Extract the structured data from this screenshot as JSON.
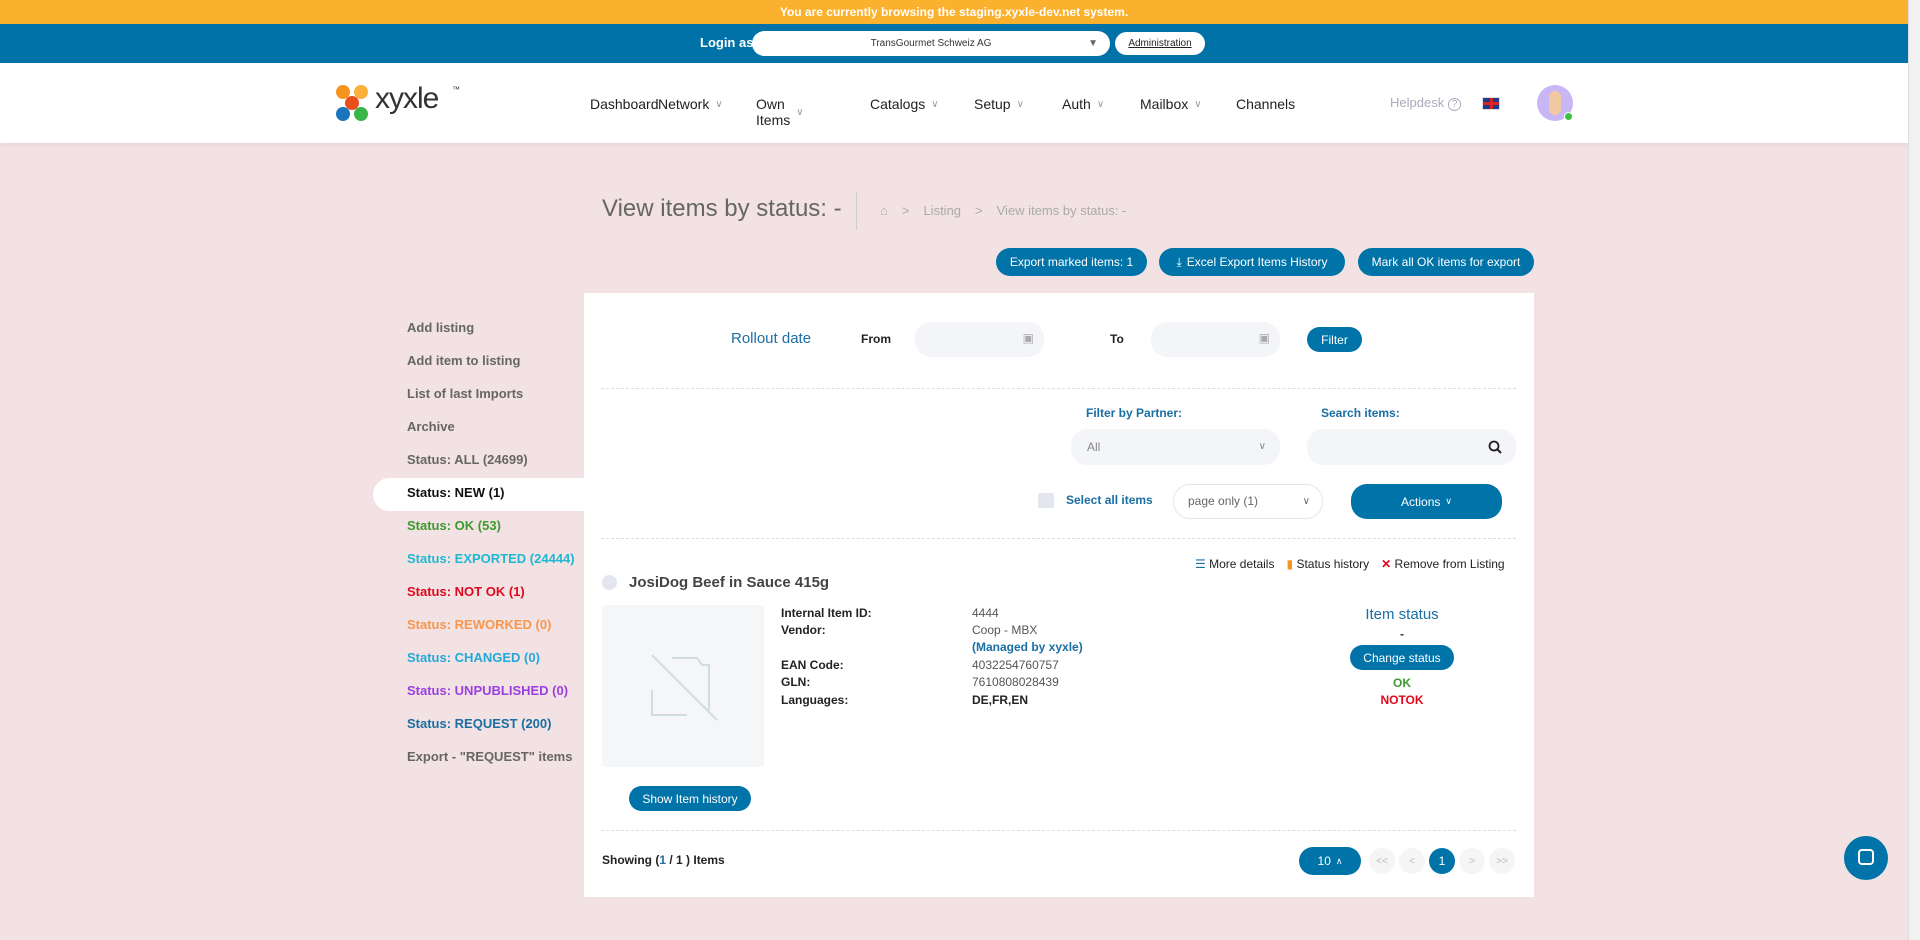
{
  "banner": "You are currently browsing the staging.xyxle-dev.net system.",
  "login": {
    "label": "Login as",
    "company": "TransGourmet Schweiz AG",
    "admin": "Administration"
  },
  "logo": {
    "text": "xyxle",
    "tm": "™"
  },
  "nav": [
    {
      "label": "Dashboard",
      "dropdown": false
    },
    {
      "label": "Network",
      "dropdown": true
    },
    {
      "label": "Own Items",
      "dropdown": true
    },
    {
      "label": "Catalogs",
      "dropdown": true
    },
    {
      "label": "Setup",
      "dropdown": true
    },
    {
      "label": "Auth",
      "dropdown": true
    },
    {
      "label": "Mailbox",
      "dropdown": true
    },
    {
      "label": "Channels",
      "dropdown": false
    }
  ],
  "helpdesk": "Helpdesk",
  "page": {
    "title": "View items by status: -",
    "breadcrumb": [
      "Listing",
      "View items by status: -"
    ]
  },
  "actions": {
    "export_marked": "Export marked items: 1",
    "excel_export": "Excel Export Items History",
    "mark_all": "Mark all OK items for export"
  },
  "sidebar": [
    {
      "label": "Add listing",
      "color": "#666666"
    },
    {
      "label": "Add item to listing",
      "color": "#666666"
    },
    {
      "label": "List of last Imports",
      "color": "#666666"
    },
    {
      "label": "Archive",
      "color": "#666666"
    },
    {
      "label": "Status: ALL (24699)",
      "color": "#666666"
    },
    {
      "label": "Status: NEW (1)",
      "color": "#111111",
      "active": true
    },
    {
      "label": "Status: OK (53)",
      "color": "#3c9a2e"
    },
    {
      "label": "Status: EXPORTED (24444)",
      "color": "#1fb8d3"
    },
    {
      "label": "Status: NOT OK (1)",
      "color": "#e0081c"
    },
    {
      "label": "Status: REWORKED (0)",
      "color": "#f7964d"
    },
    {
      "label": "Status: CHANGED (0)",
      "color": "#22a9d9"
    },
    {
      "label": "Status: UNPUBLISHED (0)",
      "color": "#9b3fe0"
    },
    {
      "label": "Status: REQUEST (200)",
      "color": "#1a6ea3"
    },
    {
      "label": "Export - \"REQUEST\" items",
      "color": "#666666"
    }
  ],
  "filters": {
    "rollout": "Rollout date",
    "from": "From",
    "to": "To",
    "filter_btn": "Filter",
    "partner_label": "Filter by Partner:",
    "partner_value": "All",
    "search_label": "Search items:",
    "select_all": "Select all items",
    "page_only": "page only (1)",
    "actions": "Actions"
  },
  "item": {
    "links": {
      "more": "More details",
      "history": "Status history",
      "remove": "Remove from Listing"
    },
    "name": "JosiDog Beef in Sauce 415g",
    "details": [
      {
        "label": "Internal Item ID:",
        "value": "4444"
      },
      {
        "label": "Vendor:",
        "value": "Coop - MBX"
      },
      {
        "label": "",
        "value": "(Managed by xyxle)"
      },
      {
        "label": "EAN Code:",
        "value": "4032254760757"
      },
      {
        "label": "GLN:",
        "value": "7610808028439"
      },
      {
        "label": "Languages:",
        "value": "DE,FR,EN"
      }
    ],
    "status_title": "Item status",
    "status_value": "-",
    "change_status": "Change status",
    "ok": "OK",
    "notok": "NOTOK",
    "show_history": "Show Item history"
  },
  "footer": {
    "showing_pre": "Showing (",
    "current": "1",
    "showing_post": " / 1 ) Items",
    "per_page": "10",
    "pages": [
      "<<",
      "<",
      "1",
      ">",
      ">>"
    ]
  }
}
